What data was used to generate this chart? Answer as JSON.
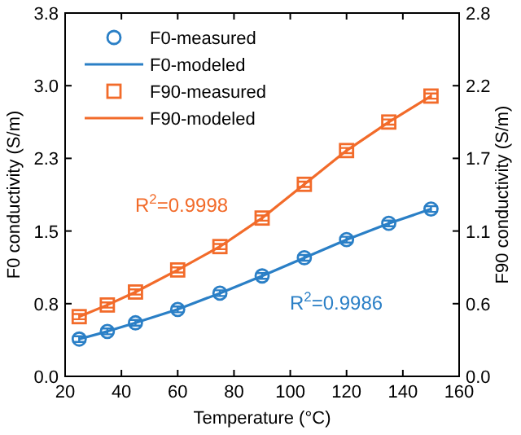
{
  "chart_data": {
    "type": "line",
    "xlabel": "Temperature (°C)",
    "ylabel": "F0 conductivity (S/m)",
    "y2label": "F90 conductivity (S/m)",
    "x": [
      25,
      35,
      45,
      60,
      75,
      90,
      105,
      120,
      135,
      150
    ],
    "xlim": [
      20,
      160
    ],
    "xticks": [
      20,
      40,
      60,
      80,
      100,
      120,
      140,
      160
    ],
    "ylim": [
      0,
      3.8
    ],
    "yticks": [
      {
        "value": 0,
        "label": "0.0"
      },
      {
        "value": 0.76,
        "label": "0.8"
      },
      {
        "value": 1.52,
        "label": "1.5"
      },
      {
        "value": 2.28,
        "label": "2.3"
      },
      {
        "value": 3.04,
        "label": "3.0"
      },
      {
        "value": 3.8,
        "label": "3.8"
      }
    ],
    "y2lim": [
      0,
      2.8
    ],
    "y2ticks": [
      {
        "value": 0,
        "label": "0.0"
      },
      {
        "value": 0.56,
        "label": "0.6"
      },
      {
        "value": 1.12,
        "label": "1.1"
      },
      {
        "value": 1.68,
        "label": "1.7"
      },
      {
        "value": 2.24,
        "label": "2.2"
      },
      {
        "value": 2.8,
        "label": "2.8"
      }
    ],
    "legend": "top left",
    "grid": false,
    "series": [
      {
        "name": "F0-measured",
        "type": "scatter",
        "marker": "circle",
        "color": "#2a7fc6",
        "values": [
          0.39,
          0.47,
          0.56,
          0.7,
          0.87,
          1.05,
          1.24,
          1.43,
          1.6,
          1.75
        ],
        "errors": [
          0.03,
          0.03,
          0.03,
          0.03,
          0.03,
          0.03,
          0.03,
          0.03,
          0.03,
          0.03
        ]
      },
      {
        "name": "F0-modeled",
        "marker": "none",
        "line_style": "solid",
        "color": "#2a7fc6",
        "values": [
          0.39,
          0.47,
          0.56,
          0.7,
          0.87,
          1.05,
          1.24,
          1.43,
          1.6,
          1.75
        ]
      },
      {
        "name": "F90-measured",
        "type": "scatter",
        "marker": "square",
        "axis": "y2",
        "color": "#f26b2a",
        "values": [
          0.46,
          0.55,
          0.65,
          0.82,
          1.0,
          1.22,
          1.48,
          1.74,
          1.96,
          2.16
        ],
        "errors": [
          0.02,
          0.02,
          0.02,
          0.02,
          0.02,
          0.02,
          0.02,
          0.02,
          0.02,
          0.02
        ]
      },
      {
        "name": "F90-modeled",
        "marker": "none",
        "line_style": "solid",
        "axis": "y2",
        "color": "#f26b2a",
        "values": [
          0.46,
          0.55,
          0.65,
          0.82,
          1.0,
          1.22,
          1.48,
          1.74,
          1.96,
          2.16
        ]
      }
    ],
    "annotations": [
      "R$^{2}$=0.9986",
      "R$^{2}$=0.9998"
    ]
  }
}
